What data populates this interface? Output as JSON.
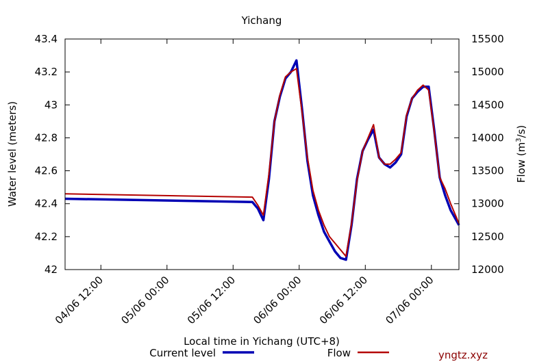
{
  "chart_data": {
    "type": "line",
    "title": "Yichang",
    "xlabel": "Local time in Yichang (UTC+8)",
    "ylabel_left": "Water level (meters)",
    "ylabel_right_prefix": "Flow (m",
    "ylabel_right_sup": "3",
    "ylabel_right_suffix": "/s)",
    "x_ticks": [
      "04/06 12:00",
      "05/06 00:00",
      "05/06 12:00",
      "06/06 00:00",
      "06/06 12:00",
      "07/06 00:00"
    ],
    "x_range_hours": [
      -6.5,
      65
    ],
    "y_left_ticks": [
      "42",
      "42.2",
      "42.4",
      "42.6",
      "42.8",
      "43",
      "43.2",
      "43.4"
    ],
    "y_left_range": [
      42.0,
      43.4
    ],
    "y_right_ticks": [
      "12000",
      "12500",
      "13000",
      "13500",
      "14000",
      "14500",
      "15000",
      "15500"
    ],
    "y_right_range": [
      12000,
      15500
    ],
    "series": [
      {
        "name": "Current level",
        "color": "#0000b4",
        "axis": "left",
        "x": [
          -6.5,
          27.5,
          28.5,
          29.5,
          30.5,
          31.5,
          32.5,
          33.5,
          34.5,
          35.5,
          36.5,
          37.5,
          38.5,
          39.5,
          40.5,
          41.5,
          42.5,
          43.5,
          44.5,
          45.5,
          46.5,
          47.5,
          48.5,
          49.5,
          50.5,
          51.5,
          52.5,
          53.5,
          54.5,
          55.5,
          56.5,
          57.5,
          58.5,
          59.5,
          60.5,
          61.5,
          62.5,
          63.5,
          64.5,
          65
        ],
        "y": [
          42.43,
          42.41,
          42.37,
          42.3,
          42.55,
          42.9,
          43.05,
          43.16,
          43.2,
          43.27,
          42.98,
          42.66,
          42.45,
          42.33,
          42.23,
          42.17,
          42.11,
          42.07,
          42.06,
          42.27,
          42.55,
          42.72,
          42.79,
          42.85,
          42.68,
          42.64,
          42.62,
          42.65,
          42.7,
          42.93,
          43.04,
          43.08,
          43.11,
          43.11,
          42.85,
          42.56,
          42.45,
          42.36,
          42.3,
          42.27
        ]
      },
      {
        "name": "Flow",
        "color": "#b40000",
        "axis": "right",
        "x": [
          -6.5,
          27.5,
          28.5,
          29.5,
          30.5,
          31.5,
          32.5,
          33.5,
          34.5,
          35.5,
          36.5,
          37.5,
          38.5,
          39.5,
          40.5,
          41.5,
          42.5,
          43.5,
          44.5,
          45.5,
          46.5,
          47.5,
          48.5,
          49.5,
          50.5,
          51.5,
          52.5,
          53.5,
          54.5,
          55.5,
          56.5,
          57.5,
          58.5,
          59.5,
          60.5,
          61.5,
          62.5,
          63.5,
          64.5,
          65
        ],
        "y": [
          13150,
          13100,
          12975,
          12825,
          13450,
          14250,
          14650,
          14925,
          15000,
          15050,
          14400,
          13700,
          13200,
          12900,
          12675,
          12500,
          12400,
          12300,
          12200,
          12700,
          13350,
          13800,
          14000,
          14200,
          13700,
          13600,
          13600,
          13675,
          13775,
          14350,
          14600,
          14725,
          14800,
          14725,
          14100,
          13400,
          13225,
          13000,
          12800,
          12700
        ]
      }
    ],
    "legend": [
      {
        "label": "Current level",
        "color": "#0000b4"
      },
      {
        "label": "Flow",
        "color": "#b40000"
      }
    ],
    "legend_placement": "bottom",
    "grid": false
  },
  "watermark": "yngtz.xyz",
  "watermark_color": "#8b0000"
}
